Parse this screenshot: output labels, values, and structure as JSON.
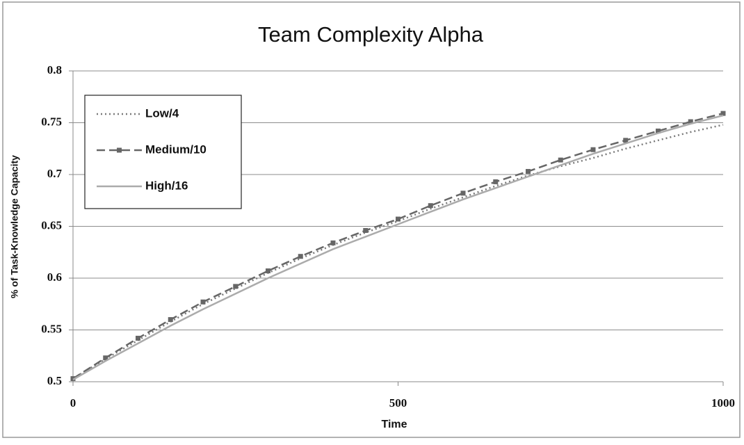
{
  "chart_data": {
    "type": "line",
    "title": "Team Complexity Alpha",
    "x_label": "Time",
    "y_label": "% of Task-Knowledge Capacity",
    "x": [
      0,
      50,
      100,
      150,
      200,
      250,
      300,
      350,
      400,
      450,
      500,
      550,
      600,
      650,
      700,
      750,
      800,
      850,
      900,
      950,
      1000
    ],
    "series": [
      {
        "name": "Low/4",
        "color": "#7a7a7a",
        "style": "dotted",
        "values": [
          0.503,
          0.522,
          0.54,
          0.558,
          0.575,
          0.59,
          0.605,
          0.619,
          0.632,
          0.644,
          0.655,
          0.667,
          0.678,
          0.689,
          0.699,
          0.708,
          0.716,
          0.725,
          0.733,
          0.741,
          0.748
        ]
      },
      {
        "name": "Medium/10",
        "color": "#666666",
        "style": "dashed",
        "marker": "square",
        "values": [
          0.503,
          0.523,
          0.542,
          0.56,
          0.577,
          0.592,
          0.607,
          0.621,
          0.634,
          0.646,
          0.657,
          0.67,
          0.682,
          0.693,
          0.703,
          0.714,
          0.724,
          0.733,
          0.742,
          0.751,
          0.759
        ]
      },
      {
        "name": "High/16",
        "color": "#ababab",
        "style": "solid",
        "values": [
          0.502,
          0.52,
          0.537,
          0.554,
          0.57,
          0.585,
          0.6,
          0.614,
          0.628,
          0.64,
          0.652,
          0.664,
          0.676,
          0.687,
          0.698,
          0.709,
          0.72,
          0.73,
          0.74,
          0.749,
          0.757
        ]
      }
    ],
    "xlim": [
      0,
      1000
    ],
    "xticks": [
      0,
      500,
      1000
    ],
    "ylim": [
      0.5,
      0.8
    ],
    "yticks": [
      0.5,
      0.55,
      0.6,
      0.65,
      0.7,
      0.75,
      0.8
    ],
    "grid": true,
    "legend": "upper left"
  }
}
